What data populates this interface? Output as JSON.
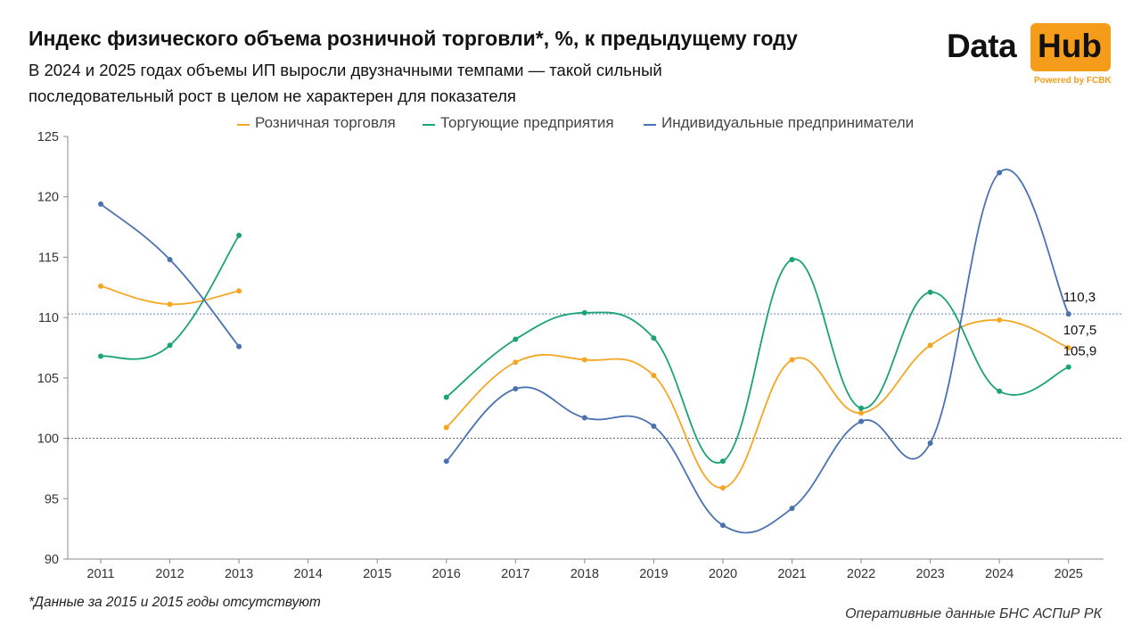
{
  "header": {
    "title": "Индекс физического объема розничной торговли*, %, к предыдущему году",
    "subtitle": "В 2024 и 2025 годах объемы ИП выросли двузначными темпами — такой сильный последовательный рост в целом не характерен для показателя"
  },
  "logo": {
    "word1": "Data",
    "word2": "Hub",
    "powered": "Powered by FCBK",
    "accent": "#f59c1a"
  },
  "footer": {
    "footnote": "*Данные за 2015 и 2015 годы отсутствуют",
    "source": "Оперативные данные БНС АСПиР РК"
  },
  "chart_data": {
    "type": "line",
    "categories": [
      "2011",
      "2012",
      "2013",
      "2014",
      "2015",
      "2016",
      "2017",
      "2018",
      "2019",
      "2020",
      "2021",
      "2022",
      "2023",
      "2024",
      "2025"
    ],
    "ylim": [
      90,
      125
    ],
    "yticks": [
      90,
      95,
      100,
      105,
      110,
      115,
      120,
      125
    ],
    "reference_lines": [
      100,
      110.3
    ],
    "grid": false,
    "legend_position": "top",
    "series": [
      {
        "name": "Розничная торговля",
        "color": "#f5a623",
        "values": [
          112.6,
          111.1,
          112.2,
          null,
          null,
          100.9,
          106.3,
          106.5,
          105.2,
          95.9,
          106.5,
          102.1,
          107.7,
          109.8,
          107.5
        ]
      },
      {
        "name": "Торгующие предприятия",
        "color": "#1aa373",
        "values": [
          106.8,
          107.7,
          116.8,
          null,
          null,
          103.4,
          108.2,
          110.4,
          108.3,
          98.1,
          114.8,
          102.5,
          112.1,
          103.9,
          105.9
        ]
      },
      {
        "name": "Индивидуальные предприниматели",
        "color": "#4a72b0",
        "values": [
          119.4,
          114.8,
          107.6,
          null,
          null,
          98.1,
          104.1,
          101.7,
          101.0,
          92.8,
          94.2,
          101.4,
          99.6,
          122.0,
          110.3
        ]
      }
    ],
    "end_labels": [
      "110,3",
      "107,5",
      "105,9"
    ]
  }
}
